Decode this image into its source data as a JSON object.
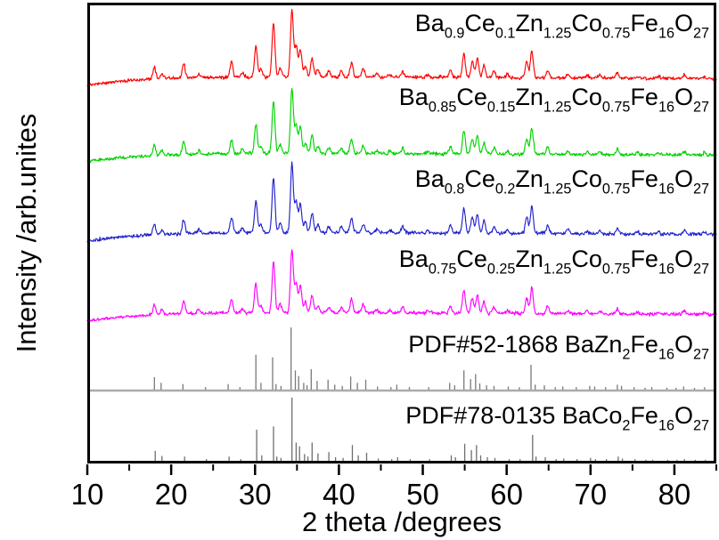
{
  "figure": {
    "background": "#ffffff",
    "frame_color": "#000000",
    "separator_color": "#ababab"
  },
  "chart_data": {
    "type": "line",
    "title": "",
    "xlabel": "2 theta /degrees",
    "ylabel": "Intensity /arb.unites",
    "xlim": [
      10,
      85
    ],
    "x_major_ticks": [
      10,
      20,
      30,
      40,
      50,
      60,
      70,
      80
    ],
    "x_minor_ticks": [
      15,
      25,
      35,
      45,
      55,
      65,
      75,
      85
    ],
    "grid": false,
    "y_axis_ticks": "none (arbitrary units)",
    "legend_position": "inline right-aligned labels above each pattern",
    "series": [
      {
        "label": "Ba_{0.9}Ce_{0.1}Zn_{1.25}Co_{0.75}Fe_{16}O_{27}",
        "color": "#ff0000",
        "kind": "trace",
        "peaks_ref": "trace_peaks"
      },
      {
        "label": "Ba_{0.85}Ce_{0.15}Zn_{1.25}Co_{0.75}Fe_{16}O_{27}",
        "color": "#00d300",
        "kind": "trace",
        "peaks_ref": "trace_peaks"
      },
      {
        "label": "Ba_{0.8}Ce_{0.2}Zn_{1.25}Co_{0.75}Fe_{16}O_{27}",
        "color": "#2222cc",
        "kind": "trace",
        "peaks_ref": "trace_peaks"
      },
      {
        "label": "Ba_{0.75}Ce_{0.25}Zn_{1.25}Co_{0.75}Fe_{16}O_{27}",
        "color": "#ff00ff",
        "kind": "trace",
        "peaks_ref": "trace_peaks"
      },
      {
        "label": "PDF#52-1868 BaZn_{2}Fe_{16}O_{27}",
        "color": "#7a7a7a",
        "kind": "sticks",
        "peaks_ref": "pdf52_peaks"
      },
      {
        "label": "PDF#78-0135 BaCo_{2}Fe_{16}O_{27}",
        "color": "#6e6e6e",
        "kind": "sticks",
        "peaks_ref": "pdf78_peaks"
      }
    ],
    "trace_peaks": [
      [
        18.0,
        0.16
      ],
      [
        18.9,
        0.07
      ],
      [
        21.5,
        0.2
      ],
      [
        23.3,
        0.05
      ],
      [
        27.2,
        0.22
      ],
      [
        28.5,
        0.07
      ],
      [
        30.1,
        0.46
      ],
      [
        30.7,
        0.12
      ],
      [
        32.2,
        0.8
      ],
      [
        33.0,
        0.14
      ],
      [
        34.4,
        1.0
      ],
      [
        34.9,
        0.45
      ],
      [
        35.4,
        0.42
      ],
      [
        36.0,
        0.16
      ],
      [
        36.8,
        0.28
      ],
      [
        37.5,
        0.11
      ],
      [
        38.8,
        0.09
      ],
      [
        40.3,
        0.09
      ],
      [
        41.5,
        0.22
      ],
      [
        42.9,
        0.13
      ],
      [
        44.5,
        0.05
      ],
      [
        46.1,
        0.04
      ],
      [
        47.6,
        0.09
      ],
      [
        50.6,
        0.04
      ],
      [
        53.3,
        0.11
      ],
      [
        54.9,
        0.36
      ],
      [
        55.9,
        0.24
      ],
      [
        56.5,
        0.28
      ],
      [
        57.3,
        0.18
      ],
      [
        58.5,
        0.09
      ],
      [
        60.1,
        0.05
      ],
      [
        62.4,
        0.24
      ],
      [
        63.0,
        0.4
      ],
      [
        64.9,
        0.11
      ],
      [
        67.3,
        0.05
      ],
      [
        69.6,
        0.04
      ],
      [
        71.1,
        0.04
      ],
      [
        73.2,
        0.08
      ],
      [
        75.6,
        0.03
      ],
      [
        78.1,
        0.03
      ],
      [
        81.2,
        0.06
      ],
      [
        83.6,
        0.03
      ]
    ],
    "pdf52_peaks": [
      [
        18.0,
        0.2
      ],
      [
        18.8,
        0.11
      ],
      [
        21.4,
        0.09
      ],
      [
        24.1,
        0.04
      ],
      [
        26.8,
        0.09
      ],
      [
        28.2,
        0.04
      ],
      [
        30.1,
        0.56
      ],
      [
        30.7,
        0.11
      ],
      [
        32.1,
        0.52
      ],
      [
        32.5,
        0.09
      ],
      [
        33.1,
        0.06
      ],
      [
        34.3,
        1.0
      ],
      [
        34.8,
        0.31
      ],
      [
        35.2,
        0.22
      ],
      [
        35.8,
        0.11
      ],
      [
        36.2,
        0.07
      ],
      [
        36.7,
        0.33
      ],
      [
        37.4,
        0.14
      ],
      [
        38.7,
        0.16
      ],
      [
        39.5,
        0.08
      ],
      [
        40.4,
        0.06
      ],
      [
        41.4,
        0.21
      ],
      [
        42.2,
        0.11
      ],
      [
        43.2,
        0.16
      ],
      [
        44.6,
        0.05
      ],
      [
        46.2,
        0.04
      ],
      [
        46.9,
        0.08
      ],
      [
        48.4,
        0.04
      ],
      [
        50.7,
        0.04
      ],
      [
        53.2,
        0.11
      ],
      [
        53.8,
        0.07
      ],
      [
        54.9,
        0.31
      ],
      [
        55.7,
        0.17
      ],
      [
        56.3,
        0.25
      ],
      [
        56.8,
        0.1
      ],
      [
        57.6,
        0.07
      ],
      [
        58.5,
        0.06
      ],
      [
        60.2,
        0.05
      ],
      [
        61.5,
        0.04
      ],
      [
        62.9,
        0.4
      ],
      [
        63.4,
        0.08
      ],
      [
        64.5,
        0.07
      ],
      [
        65.8,
        0.04
      ],
      [
        66.7,
        0.05
      ],
      [
        68.3,
        0.04
      ],
      [
        69.9,
        0.06
      ],
      [
        70.5,
        0.05
      ],
      [
        71.8,
        0.04
      ],
      [
        73.2,
        0.08
      ],
      [
        73.7,
        0.06
      ],
      [
        75.2,
        0.04
      ],
      [
        76.5,
        0.03
      ],
      [
        77.3,
        0.04
      ],
      [
        79.1,
        0.03
      ],
      [
        80.2,
        0.03
      ],
      [
        81.1,
        0.05
      ],
      [
        82.4,
        0.03
      ],
      [
        83.6,
        0.04
      ]
    ],
    "pdf78_peaks": [
      [
        18.1,
        0.17
      ],
      [
        18.9,
        0.09
      ],
      [
        21.6,
        0.08
      ],
      [
        24.2,
        0.04
      ],
      [
        26.9,
        0.08
      ],
      [
        28.3,
        0.04
      ],
      [
        30.2,
        0.5
      ],
      [
        30.8,
        0.1
      ],
      [
        32.2,
        0.55
      ],
      [
        32.6,
        0.08
      ],
      [
        33.1,
        0.06
      ],
      [
        34.4,
        1.0
      ],
      [
        34.9,
        0.3
      ],
      [
        35.3,
        0.24
      ],
      [
        35.9,
        0.12
      ],
      [
        36.3,
        0.08
      ],
      [
        36.8,
        0.3
      ],
      [
        37.5,
        0.13
      ],
      [
        38.8,
        0.15
      ],
      [
        39.6,
        0.07
      ],
      [
        40.5,
        0.06
      ],
      [
        41.6,
        0.26
      ],
      [
        42.3,
        0.1
      ],
      [
        43.3,
        0.14
      ],
      [
        44.7,
        0.05
      ],
      [
        46.3,
        0.04
      ],
      [
        47.0,
        0.07
      ],
      [
        48.5,
        0.04
      ],
      [
        50.8,
        0.04
      ],
      [
        53.4,
        0.1
      ],
      [
        53.9,
        0.07
      ],
      [
        55.0,
        0.28
      ],
      [
        55.8,
        0.18
      ],
      [
        56.4,
        0.26
      ],
      [
        56.9,
        0.1
      ],
      [
        57.7,
        0.07
      ],
      [
        58.6,
        0.06
      ],
      [
        60.3,
        0.04
      ],
      [
        61.6,
        0.04
      ],
      [
        63.1,
        0.42
      ],
      [
        63.5,
        0.08
      ],
      [
        64.6,
        0.07
      ],
      [
        65.9,
        0.04
      ],
      [
        66.8,
        0.05
      ],
      [
        68.4,
        0.04
      ],
      [
        70.0,
        0.06
      ],
      [
        70.6,
        0.04
      ],
      [
        71.9,
        0.04
      ],
      [
        73.3,
        0.08
      ],
      [
        73.8,
        0.05
      ],
      [
        75.3,
        0.04
      ],
      [
        76.6,
        0.03
      ],
      [
        77.4,
        0.03
      ],
      [
        79.2,
        0.03
      ],
      [
        80.3,
        0.03
      ],
      [
        81.2,
        0.04
      ],
      [
        82.5,
        0.03
      ],
      [
        83.7,
        0.03
      ]
    ]
  }
}
